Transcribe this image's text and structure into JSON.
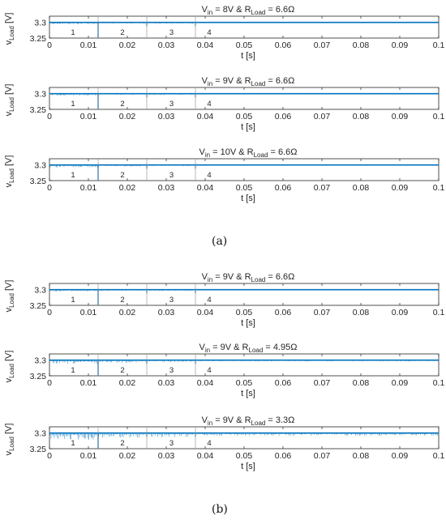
{
  "chart_data": [
    {
      "group": "a",
      "type": "line",
      "title_pre": "V",
      "title_sub": "in",
      "title_mid": " = 8V & R",
      "title_sub2": "Load",
      "title_post": " = 6.6Ω",
      "xlabel": "t [s]",
      "ylabel_main": "v",
      "ylabel_sub": "Load",
      "ylabel_unit": " [V]",
      "xlim": [
        0,
        0.1
      ],
      "ylim": [
        3.25,
        3.32
      ],
      "xticks": [
        "0",
        "0.01",
        "0.02",
        "0.03",
        "0.04",
        "0.05",
        "0.06",
        "0.07",
        "0.08",
        "0.09",
        "0.1"
      ],
      "yticks": [
        "3.25",
        "3.3"
      ],
      "step_times": [
        0.0125,
        0.025,
        0.0375
      ],
      "region_labels": [
        "1",
        "2",
        "3",
        "4"
      ],
      "series": [
        {
          "color": "#0072BD",
          "nominal": 3.3,
          "ripple_depth": [
            0.006,
            0.004,
            0.004,
            0.002
          ]
        }
      ]
    },
    {
      "group": "a",
      "type": "line",
      "title_pre": "V",
      "title_sub": "in",
      "title_mid": " = 9V & R",
      "title_sub2": "Load",
      "title_post": " = 6.6Ω",
      "xlabel": "t [s]",
      "ylabel_main": "v",
      "ylabel_sub": "Load",
      "ylabel_unit": " [V]",
      "xlim": [
        0,
        0.1
      ],
      "ylim": [
        3.25,
        3.32
      ],
      "xticks": [
        "0",
        "0.01",
        "0.02",
        "0.03",
        "0.04",
        "0.05",
        "0.06",
        "0.07",
        "0.08",
        "0.09",
        "0.1"
      ],
      "yticks": [
        "3.25",
        "3.3"
      ],
      "step_times": [
        0.0125,
        0.025,
        0.0375
      ],
      "region_labels": [
        "1",
        "2",
        "3",
        "4"
      ],
      "series": [
        {
          "color": "#0072BD",
          "nominal": 3.3,
          "ripple_depth": [
            0.006,
            0.004,
            0.004,
            0.002
          ]
        }
      ]
    },
    {
      "group": "a",
      "type": "line",
      "title_pre": "V",
      "title_sub": "in",
      "title_mid": " = 10V & R",
      "title_sub2": "Load",
      "title_post": " = 6.6Ω",
      "xlabel": "t [s]",
      "ylabel_main": "v",
      "ylabel_sub": "Load",
      "ylabel_unit": " [V]",
      "xlim": [
        0,
        0.1
      ],
      "ylim": [
        3.25,
        3.32
      ],
      "xticks": [
        "0",
        "0.01",
        "0.02",
        "0.03",
        "0.04",
        "0.05",
        "0.06",
        "0.07",
        "0.08",
        "0.09",
        "0.1"
      ],
      "yticks": [
        "3.25",
        "3.3"
      ],
      "step_times": [
        0.0125,
        0.025,
        0.0375
      ],
      "region_labels": [
        "1",
        "2",
        "3",
        "4"
      ],
      "series": [
        {
          "color": "#0072BD",
          "nominal": 3.3,
          "ripple_depth": [
            0.008,
            0.005,
            0.004,
            0.002
          ]
        }
      ]
    },
    {
      "group": "b",
      "type": "line",
      "title_pre": "V",
      "title_sub": "in",
      "title_mid": " = 9V & R",
      "title_sub2": "Load",
      "title_post": " = 6.6Ω",
      "xlabel": "t [s]",
      "ylabel_main": "v",
      "ylabel_sub": "Load",
      "ylabel_unit": " [V]",
      "xlim": [
        0,
        0.1
      ],
      "ylim": [
        3.25,
        3.32
      ],
      "xticks": [
        "0",
        "0.01",
        "0.02",
        "0.03",
        "0.04",
        "0.05",
        "0.06",
        "0.07",
        "0.08",
        "0.09",
        "0.1"
      ],
      "yticks": [
        "3.25",
        "3.3"
      ],
      "step_times": [
        0.0125,
        0.025,
        0.0375
      ],
      "region_labels": [
        "1",
        "2",
        "3",
        "4"
      ],
      "series": [
        {
          "color": "#0072BD",
          "nominal": 3.3,
          "ripple_depth": [
            0.006,
            0.004,
            0.004,
            0.002
          ]
        }
      ]
    },
    {
      "group": "b",
      "type": "line",
      "title_pre": "V",
      "title_sub": "in",
      "title_mid": " = 9V & R",
      "title_sub2": "Load",
      "title_post": " = 4.95Ω",
      "xlabel": "t [s]",
      "ylabel_main": "v",
      "ylabel_sub": "Load",
      "ylabel_unit": " [V]",
      "xlim": [
        0,
        0.1
      ],
      "ylim": [
        3.25,
        3.32
      ],
      "xticks": [
        "0",
        "0.01",
        "0.02",
        "0.03",
        "0.04",
        "0.05",
        "0.06",
        "0.07",
        "0.08",
        "0.09",
        "0.1"
      ],
      "yticks": [
        "3.25",
        "3.3"
      ],
      "step_times": [
        0.0125,
        0.025,
        0.0375
      ],
      "region_labels": [
        "1",
        "2",
        "3",
        "4"
      ],
      "series": [
        {
          "color": "#0072BD",
          "nominal": 3.3,
          "ripple_depth": [
            0.012,
            0.008,
            0.007,
            0.004
          ]
        }
      ]
    },
    {
      "group": "b",
      "type": "line",
      "title_pre": "V",
      "title_sub": "in",
      "title_mid": " = 9V & R",
      "title_sub2": "Load",
      "title_post": " = 3.3Ω",
      "xlabel": "t [s]",
      "ylabel_main": "v",
      "ylabel_sub": "Load",
      "ylabel_unit": " [V]",
      "xlim": [
        0,
        0.1
      ],
      "ylim": [
        3.25,
        3.32
      ],
      "xticks": [
        "0",
        "0.01",
        "0.02",
        "0.03",
        "0.04",
        "0.05",
        "0.06",
        "0.07",
        "0.08",
        "0.09",
        "0.1"
      ],
      "yticks": [
        "3.25",
        "3.3"
      ],
      "step_times": [
        0.0125,
        0.025,
        0.0375
      ],
      "region_labels": [
        "1",
        "2",
        "3",
        "4"
      ],
      "series": [
        {
          "color": "#0072BD",
          "nominal": 3.3,
          "ripple_depth": [
            0.022,
            0.015,
            0.014,
            0.009
          ]
        }
      ]
    }
  ],
  "captions": {
    "a": "(a)",
    "b": "(b)"
  }
}
